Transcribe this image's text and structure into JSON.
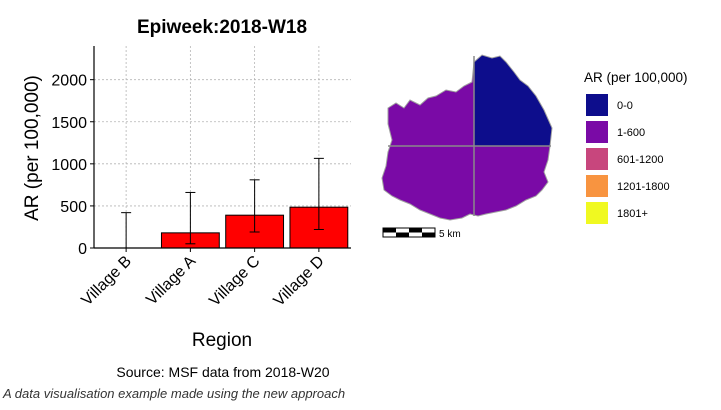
{
  "chart_data": {
    "type": "bar",
    "title": "Epiweek:2018-W18",
    "xlabel": "Region",
    "ylabel": "AR (per 100,000)",
    "ylim": [
      0,
      2400
    ],
    "yticks": [
      0,
      500,
      1000,
      1500,
      2000
    ],
    "categories": [
      "Village B",
      "Village A",
      "Village C",
      "Village D"
    ],
    "values": [
      0,
      180,
      390,
      485
    ],
    "error_lower": [
      0,
      50,
      190,
      220
    ],
    "error_upper": [
      420,
      660,
      810,
      1065
    ],
    "bar_color": "#ff0000",
    "grid": true,
    "source_note": "Source: MSF data from 2018-W20"
  },
  "map": {
    "legend_title": "AR (per 100,000)",
    "legend": [
      {
        "label": "0-0",
        "color": "#0d0d8c"
      },
      {
        "label": "1-600",
        "color": "#7a0aa6"
      },
      {
        "label": "601-1200",
        "color": "#c8467d"
      },
      {
        "label": "1201-1800",
        "color": "#f89440"
      },
      {
        "label": "1801+",
        "color": "#f0f921"
      }
    ],
    "scale_label": "5 km"
  },
  "caption": "A data visualisation example made using the new approach"
}
